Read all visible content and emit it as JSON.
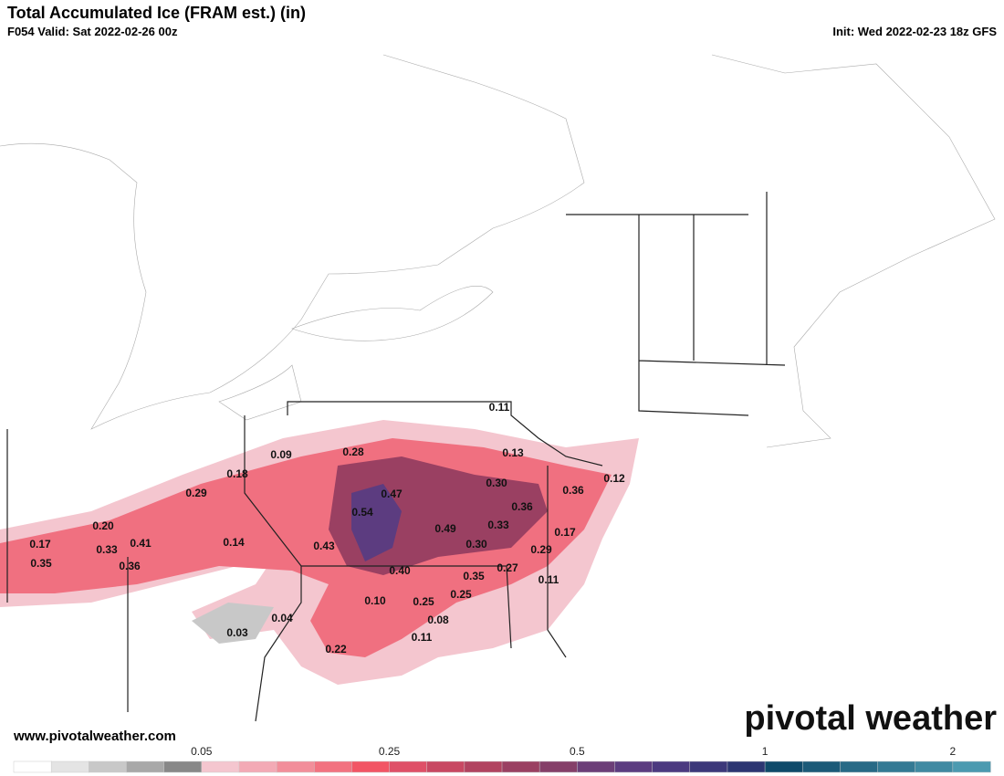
{
  "header": {
    "title": "Total Accumulated Ice (FRAM est.) (in)",
    "valid": "F054 Valid: Sat 2022-02-26 00z",
    "init": "Init: Wed 2022-02-23 18z GFS"
  },
  "point_labels": [
    "0.11",
    "0.09",
    "0.28",
    "0.13",
    "0.18",
    "0.30",
    "0.12",
    "0.29",
    "0.47",
    "0.36",
    "0.36",
    "0.54",
    "0.20",
    "0.49",
    "0.33",
    "0.17",
    "0.17",
    "0.33",
    "0.41",
    "0.14",
    "0.43",
    "0.30",
    "0.29",
    "0.35",
    "0.36",
    "0.40",
    "0.35",
    "0.27",
    "0.11",
    "0.10",
    "0.25",
    "0.25",
    "0.08",
    "0.04",
    "0.03",
    "0.11",
    "0.22"
  ],
  "footer": {
    "url": "www.pivotalweather.com",
    "logo": "pivotal weather"
  },
  "colorbar": {
    "colors": [
      "#ffffff",
      "#e4e4e4",
      "#c8c8c8",
      "#a8a8a8",
      "#888888",
      "#f4c6cf",
      "#f3aab5",
      "#f28e9a",
      "#f27280",
      "#f25565",
      "#df5068",
      "#c84863",
      "#b14360",
      "#9a4062",
      "#853f69",
      "#6c3e78",
      "#5c3c80",
      "#4c3a80",
      "#3c387a",
      "#2c3672",
      "#0f4a6a",
      "#1c5a78",
      "#286a86",
      "#347a94",
      "#408aa2",
      "#4c9ab0"
    ],
    "ticks": [
      "0.05",
      "0.25",
      "0.5",
      "1",
      "2"
    ]
  }
}
